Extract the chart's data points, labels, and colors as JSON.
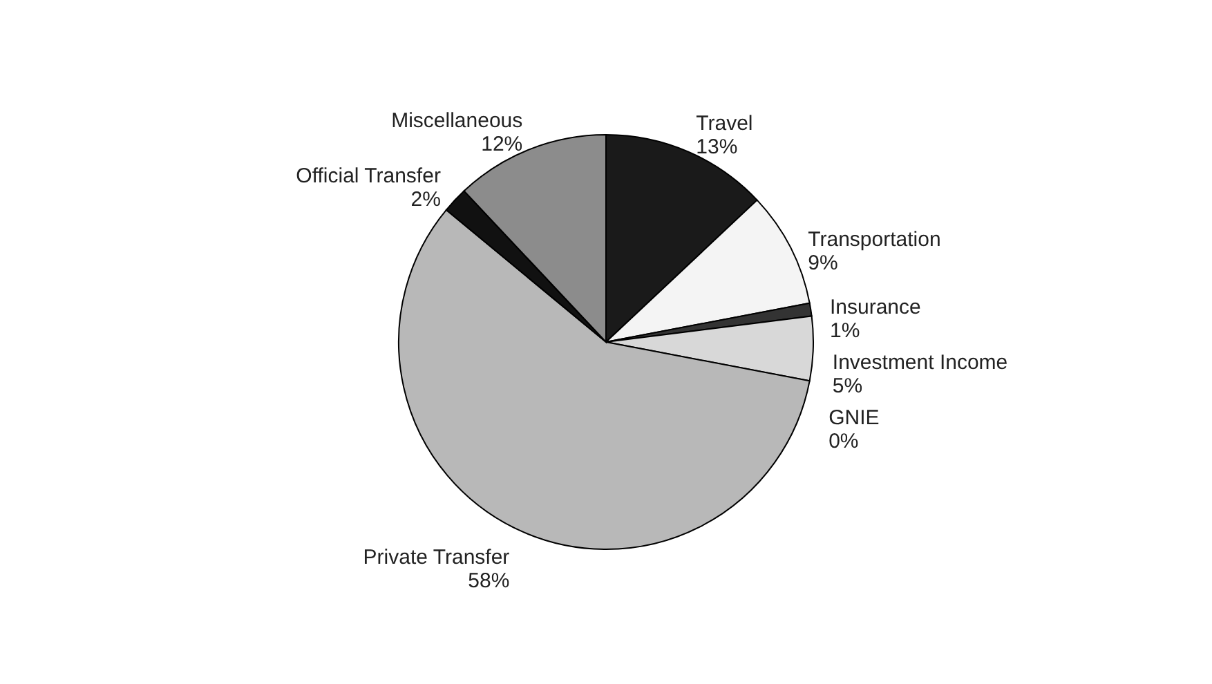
{
  "chart_data": {
    "type": "pie",
    "categories": [
      "Travel",
      "Transportation",
      "Insurance",
      "Investment Income",
      "GNIE",
      "Private Transfer",
      "Official Transfer",
      "Miscellaneous"
    ],
    "values": [
      13,
      9,
      1,
      5,
      0,
      58,
      2,
      12
    ],
    "value_labels": [
      "13%",
      "9%",
      "1%",
      "5%",
      "0%",
      "58%",
      "2%",
      "12%"
    ],
    "colors": [
      "#1a1a1a",
      "#f4f4f4",
      "#333333",
      "#d8d8d8",
      "#000000",
      "#b8b8b8",
      "#111111",
      "#8c8c8c"
    ]
  }
}
